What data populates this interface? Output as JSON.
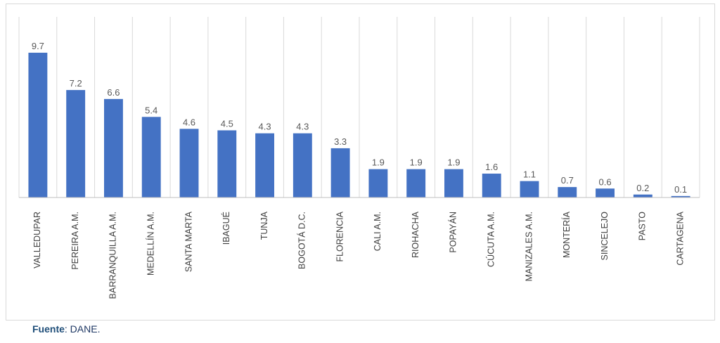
{
  "chart_data": {
    "type": "bar",
    "categories": [
      "VALLEDUPAR",
      "PEREIRA A.M.",
      "BARRANQUILLA A.M.",
      "MEDELLÍN A.M.",
      "SANTA MARTA",
      "IBAGUÉ",
      "TUNJA",
      "BOGOTÁ D.C.",
      "FLORENCIA",
      "CALI A.M.",
      "RIOHACHA",
      "POPAYÁN",
      "CÚCUTA A.M.",
      "MANIZALES A.M.",
      "MONTERÍA",
      "SINCELEJO",
      "PASTO",
      "CARTAGENA"
    ],
    "values": [
      9.7,
      7.2,
      6.6,
      5.4,
      4.6,
      4.5,
      4.3,
      4.3,
      3.3,
      1.9,
      1.9,
      1.9,
      1.6,
      1.1,
      0.7,
      0.6,
      0.2,
      0.1
    ],
    "color": "#4472c4",
    "grid": true
  },
  "source_label": "Fuente",
  "source_text": ": DANE."
}
